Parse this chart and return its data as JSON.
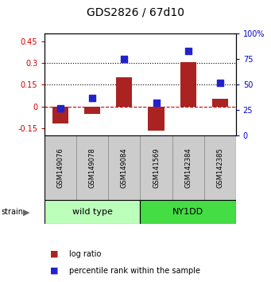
{
  "title": "GDS2826 / 67d10",
  "samples": [
    "GSM149076",
    "GSM149078",
    "GSM149084",
    "GSM141569",
    "GSM142384",
    "GSM142385"
  ],
  "log_ratio": [
    -0.12,
    -0.05,
    0.2,
    -0.17,
    0.305,
    0.05
  ],
  "percentile_rank": [
    27,
    37,
    75,
    32,
    83,
    52
  ],
  "groups": [
    {
      "label": "wild type",
      "start": 0,
      "end": 3,
      "color": "#bbffbb"
    },
    {
      "label": "NY1DD",
      "start": 3,
      "end": 6,
      "color": "#44dd44"
    }
  ],
  "left_ylim": [
    -0.2,
    0.5
  ],
  "right_ylim": [
    0,
    100
  ],
  "left_yticks": [
    -0.15,
    0.0,
    0.15,
    0.3,
    0.45
  ],
  "right_yticks": [
    0,
    25,
    50,
    75,
    100
  ],
  "right_yticklabels": [
    "0",
    "25",
    "50",
    "75",
    "100%"
  ],
  "hlines": [
    0.15,
    0.3
  ],
  "bar_color": "#aa2222",
  "dot_color": "#2222cc",
  "bar_width": 0.5,
  "dot_size": 40,
  "background_color": "#ffffff",
  "title_fontsize": 10,
  "tick_fontsize": 7,
  "label_fontsize": 7,
  "group_label_fontsize": 8,
  "sample_fontsize": 6,
  "strain_label": "strain",
  "left_tick_color": "#cc0000",
  "right_tick_color": "#0000cc",
  "box_color": "#cccccc",
  "box_edge_color": "#888888"
}
